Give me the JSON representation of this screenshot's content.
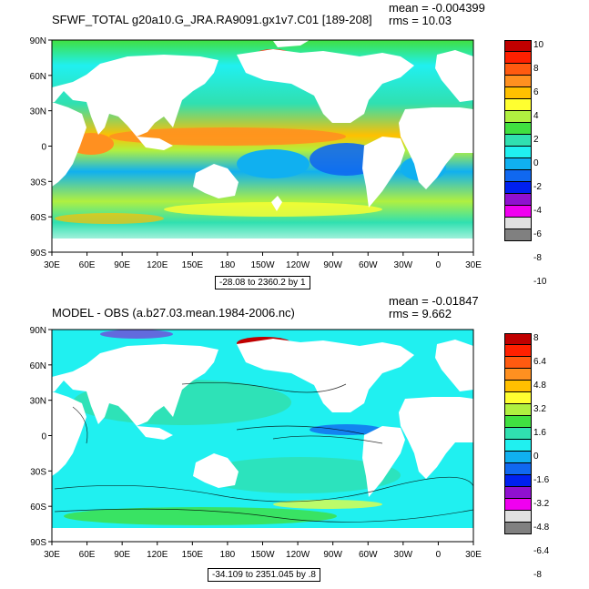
{
  "panels": [
    {
      "title": "SFWF_TOTAL g20a10.G_JRA.RA9091.gx1v7.C01 [189-208]",
      "mean": "mean = -0.004399",
      "rms": "rms = 10.03",
      "range_text": "-28.08 to 2360.2 by 1",
      "legend_labels": [
        "10",
        "8",
        "6",
        "4",
        "2",
        "0",
        "-2",
        "-4",
        "-6",
        "-8",
        "-10"
      ]
    },
    {
      "title": "MODEL - OBS (a.b27.03.mean.1984-2006.nc)",
      "mean": "mean = -0.01847",
      "rms": "rms = 9.662",
      "range_text": "-34.109 to 2351.045 by .8",
      "legend_labels": [
        "8",
        "6.4",
        "4.8",
        "3.2",
        "1.6",
        "0",
        "-1.6",
        "-3.2",
        "-4.8",
        "-6.4",
        "-8"
      ]
    }
  ],
  "lat_labels": [
    "90N",
    "60N",
    "30N",
    "0",
    "30S",
    "60S",
    "90S"
  ],
  "lon_labels": [
    "30E",
    "60E",
    "90E",
    "120E",
    "150E",
    "180",
    "150W",
    "120W",
    "90W",
    "60W",
    "30W",
    "0",
    "30E"
  ],
  "colorbar_colors": [
    "#c00000",
    "#ff2000",
    "#ff5a10",
    "#ff9020",
    "#ffc000",
    "#ffff30",
    "#b0f040",
    "#40e040",
    "#30e0b0",
    "#20f0f0",
    "#10b0f0",
    "#1068f0",
    "#0020f0",
    "#9010d0",
    "#f000f0",
    "#e0e0e0",
    "#808080"
  ],
  "land_color": "#ffffff"
}
